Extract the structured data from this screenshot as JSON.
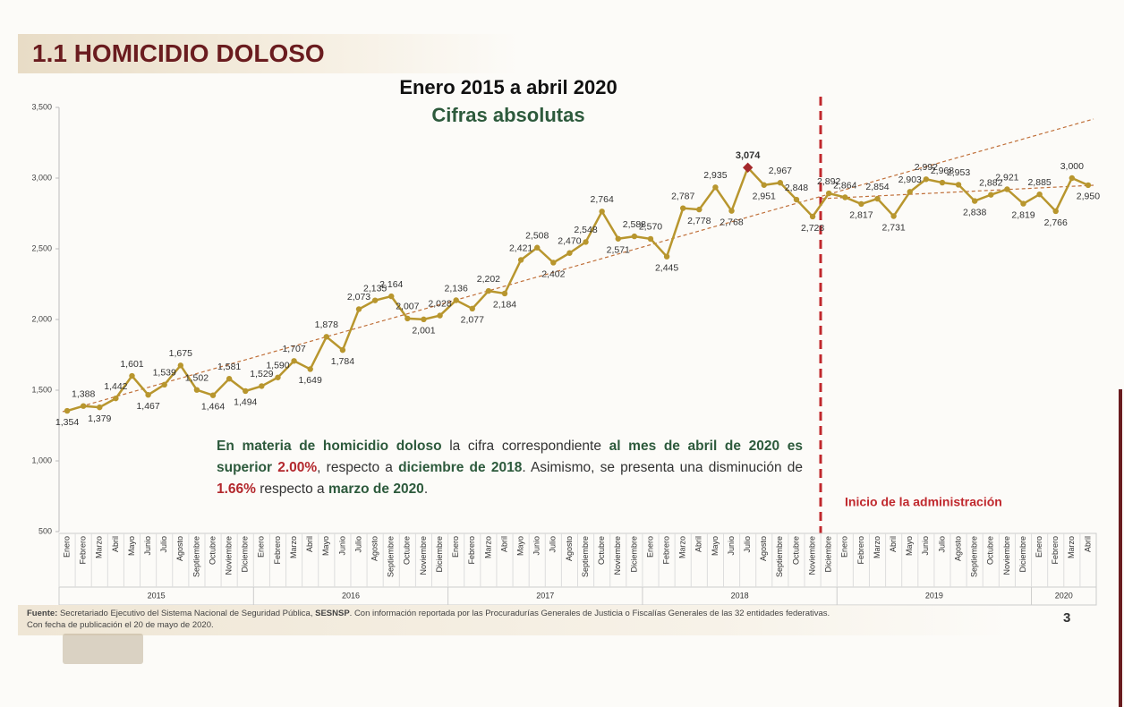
{
  "slide_title": "1.1 HOMICIDIO DOLOSO",
  "chart_data": {
    "type": "line",
    "title": "Enero 2015 a abril 2020",
    "subtitle": "Cifras absolutas",
    "categories": [
      "Enero",
      "Febrero",
      "Marzo",
      "Abril",
      "Mayo",
      "Junio",
      "Julio",
      "Agosto",
      "Septiembre",
      "Octubre",
      "Noviembre",
      "Diciembre",
      "Enero",
      "Febrero",
      "Marzo",
      "Abril",
      "Mayo",
      "Junio",
      "Julio",
      "Agosto",
      "Septiembre",
      "Octubre",
      "Noviembre",
      "Diciembre",
      "Enero",
      "Febrero",
      "Marzo",
      "Abril",
      "Mayo",
      "Junio",
      "Julio",
      "Agosto",
      "Septiembre",
      "Octubre",
      "Noviembre",
      "Diciembre",
      "Enero",
      "Febrero",
      "Marzo",
      "Abril",
      "Mayo",
      "Junio",
      "Julio",
      "Agosto",
      "Septiembre",
      "Octubre",
      "Noviembre",
      "Diciembre",
      "Enero",
      "Febrero",
      "Marzo",
      "Abril",
      "Mayo",
      "Junio",
      "Julio",
      "Agosto",
      "Septiembre",
      "Octubre",
      "Noviembre",
      "Diciembre",
      "Enero",
      "Febrero",
      "Marzo",
      "Abril"
    ],
    "years": [
      "2015",
      "2016",
      "2017",
      "2018",
      "2019",
      "2020"
    ],
    "values": [
      1354,
      1388,
      1379,
      1442,
      1601,
      1467,
      1539,
      1675,
      1502,
      1464,
      1581,
      1494,
      1529,
      1590,
      1707,
      1649,
      1878,
      1784,
      2073,
      2135,
      2164,
      2007,
      2001,
      2028,
      2136,
      2077,
      2202,
      2184,
      2421,
      2508,
      2402,
      2470,
      2548,
      2764,
      2571,
      2588,
      2570,
      2445,
      2787,
      2778,
      2935,
      2768,
      3074,
      2951,
      2967,
      2848,
      2728,
      2892,
      2864,
      2817,
      2854,
      2731,
      2903,
      2992,
      2968,
      2953,
      2838,
      2882,
      2921,
      2819,
      2885,
      2766,
      3000,
      2950
    ],
    "value_labels": [
      "1,354",
      "1,388",
      "1,379",
      "1,442",
      "1,601",
      "1,467",
      "1,539",
      "1,675",
      "1,502",
      "1,464",
      "1,581",
      "1,494",
      "1,529",
      "1,590",
      "1,707",
      "1,649",
      "1,878",
      "1,784",
      "2,073",
      "2,135",
      "2,164",
      "2,007",
      "2,001",
      "2,028",
      "2,136",
      "2,077",
      "2,202",
      "2,184",
      "2,421",
      "2,508",
      "2,402",
      "2,470",
      "2,548",
      "2,764",
      "2,571",
      "2,588",
      "2,570",
      "2,445",
      "2,787",
      "2,778",
      "2,935",
      "2,768",
      "3,074",
      "2,951",
      "2,967",
      "2,848",
      "2,728",
      "2,892",
      "2,864",
      "2,817",
      "2,854",
      "2,731",
      "2,903",
      "2,992",
      "2,968",
      "2,953",
      "2,838",
      "2,882",
      "2,921",
      "2,819",
      "2,885",
      "2,766",
      "3,000",
      "2,950"
    ],
    "color": "#b8962e",
    "peak_color": "#a4282b",
    "ylim": [
      500,
      3500
    ],
    "yticks": [
      500,
      {
        "value": 1000,
        "label": "1,000"
      },
      {
        "value": 1500,
        "label": "1,500"
      },
      {
        "value": 2000,
        "label": "2,000"
      },
      {
        "value": 2500,
        "label": "2,500"
      },
      {
        "value": 3000,
        "label": "3,000"
      },
      {
        "value": 3500,
        "label": "3,500"
      }
    ],
    "grid": false,
    "period_label": "Inicio de la administración",
    "annotation": [
      "En materia de homicidio doloso",
      "la cifra correspondiente",
      "al mes de abril de 2020 es superior",
      "2.00%",
      ", respecto a",
      "diciembre de 2018",
      ". Asimismo, se presenta una disminución de",
      "1.66%",
      "respecto a",
      "marzo de 2020",
      "."
    ]
  },
  "footer": {
    "source_label": "Fuente:",
    "source": "Secretariado Ejecutivo del Sistema Nacional de Seguridad Pública,",
    "source_abbr": "SESNSP",
    "source_rest": ". Con información reportada por las Procuradurías Generales de Justicia o Fiscalías Generales de las 32 entidades federativas.",
    "date_note": "Con fecha de publicación el 20 de mayo de 2020.",
    "page_number": "3"
  }
}
